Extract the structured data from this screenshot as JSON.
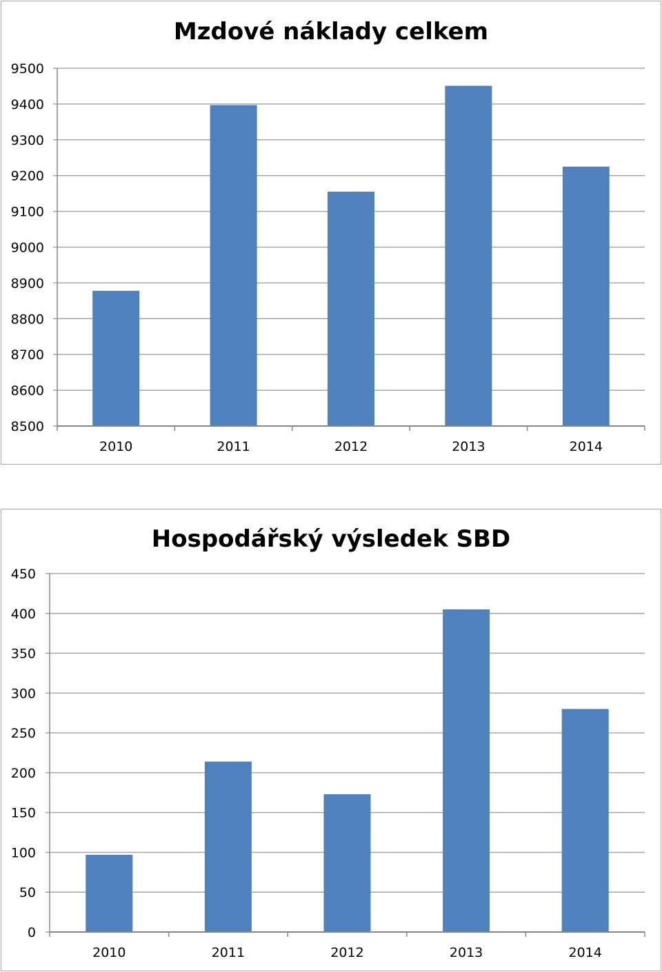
{
  "chart_data": [
    {
      "type": "bar",
      "title": "Mzdové náklady celkem",
      "categories": [
        "2010",
        "2011",
        "2012",
        "2013",
        "2014"
      ],
      "values": [
        8878,
        9397,
        9155,
        9451,
        9225
      ],
      "ylim": [
        8500,
        9500
      ],
      "yticks": [
        "8500",
        "8600",
        "8700",
        "8800",
        "8900",
        "9000",
        "9100",
        "9200",
        "9300",
        "9400",
        "9500"
      ],
      "grid": true,
      "legend": "none",
      "colors": {
        "bar": "#4f81bd",
        "grid": "#a6a6a6",
        "axis": "#868686"
      }
    },
    {
      "type": "bar",
      "title": "Hospodářský výsledek SBD",
      "categories": [
        "2010",
        "2011",
        "2012",
        "2013",
        "2014"
      ],
      "values": [
        97,
        214,
        173,
        405,
        280
      ],
      "ylim": [
        0,
        450
      ],
      "yticks": [
        "0",
        "50",
        "100",
        "150",
        "200",
        "250",
        "300",
        "350",
        "400",
        "450"
      ],
      "grid": true,
      "legend": "none",
      "colors": {
        "bar": "#4f81bd",
        "grid": "#a6a6a6",
        "axis": "#868686"
      }
    }
  ]
}
